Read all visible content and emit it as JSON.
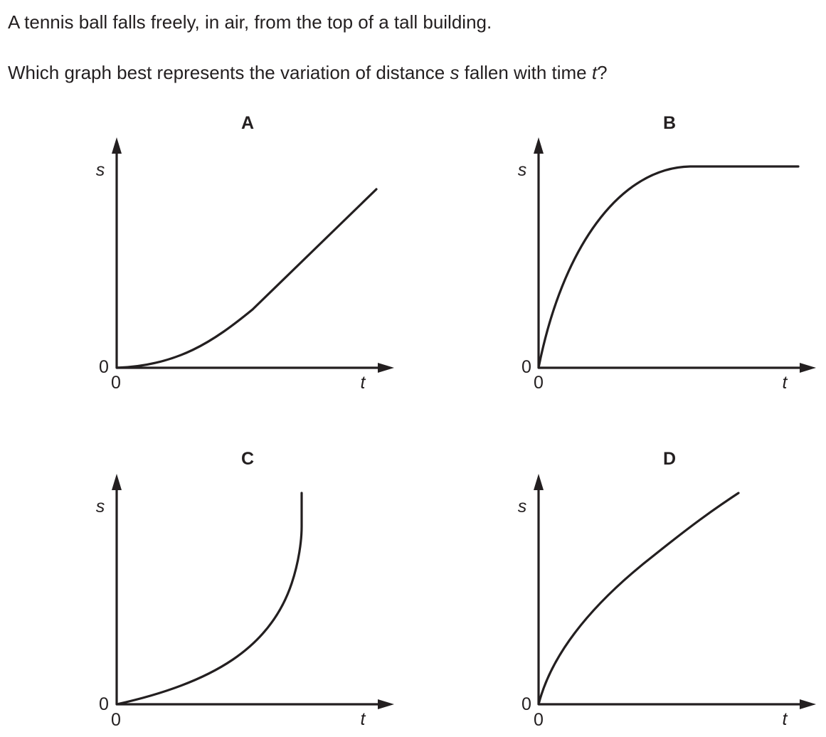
{
  "question": {
    "line1": "A tennis ball falls freely, in air, from the top of a tall building.",
    "line2_before_s": "Which graph best represents the variation of distance ",
    "line2_s": "s",
    "line2_middle": " fallen with time ",
    "line2_t": "t",
    "line2_end": "?"
  },
  "graphs": [
    {
      "label": "A",
      "y_axis_label": "s",
      "x_axis_label": "t",
      "y_origin_label": "0",
      "x_origin_label": "0",
      "shape": "slow start then straight line"
    },
    {
      "label": "B",
      "y_axis_label": "s",
      "x_axis_label": "t",
      "y_origin_label": "0",
      "x_origin_label": "0",
      "shape": "rises quickly then levels off"
    },
    {
      "label": "C",
      "y_axis_label": "s",
      "x_axis_label": "t",
      "y_origin_label": "0",
      "x_origin_label": "0",
      "shape": "curves upward to vertical"
    },
    {
      "label": "D",
      "y_axis_label": "s",
      "x_axis_label": "t",
      "y_origin_label": "0",
      "x_origin_label": "0",
      "shape": "rises steeply then gradually less steep"
    }
  ]
}
